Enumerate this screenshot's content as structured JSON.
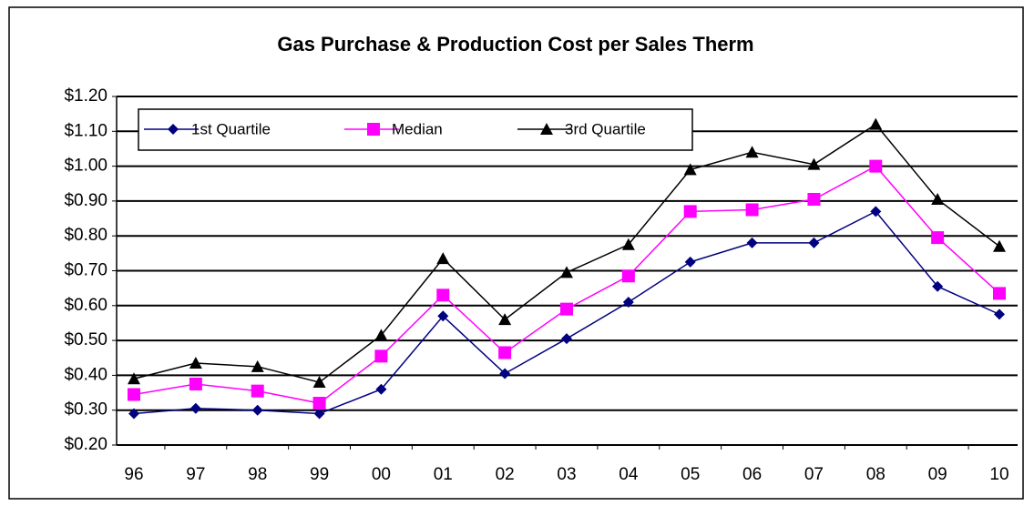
{
  "chart_data": {
    "type": "line",
    "title": "Gas Purchase & Production Cost per Sales Therm",
    "categories": [
      "96",
      "97",
      "98",
      "99",
      "00",
      "01",
      "02",
      "03",
      "04",
      "05",
      "06",
      "07",
      "08",
      "09",
      "10"
    ],
    "series": [
      {
        "name": "1st Quartile",
        "color": "#000080",
        "marker": "diamond",
        "values": [
          0.29,
          0.305,
          0.3,
          0.29,
          0.36,
          0.57,
          0.405,
          0.505,
          0.61,
          0.725,
          0.78,
          0.78,
          0.87,
          0.655,
          0.575
        ]
      },
      {
        "name": "Median",
        "color": "#ff00ff",
        "marker": "square",
        "values": [
          0.345,
          0.375,
          0.355,
          0.32,
          0.455,
          0.63,
          0.465,
          0.59,
          0.685,
          0.87,
          0.875,
          0.905,
          1.0,
          0.795,
          0.635
        ]
      },
      {
        "name": "3rd Quartile",
        "color": "#000000",
        "marker": "triangle",
        "values": [
          0.39,
          0.435,
          0.425,
          0.38,
          0.515,
          0.735,
          0.56,
          0.695,
          0.775,
          0.99,
          1.04,
          1.005,
          1.12,
          0.905,
          0.77
        ]
      }
    ],
    "ylim": [
      0.2,
      1.2
    ],
    "yticks": [
      {
        "value": 0.2,
        "label": "$0.20"
      },
      {
        "value": 0.3,
        "label": "$0.30"
      },
      {
        "value": 0.4,
        "label": "$0.40"
      },
      {
        "value": 0.5,
        "label": "$0.50"
      },
      {
        "value": 0.6,
        "label": "$0.60"
      },
      {
        "value": 0.7,
        "label": "$0.70"
      },
      {
        "value": 0.8,
        "label": "$0.80"
      },
      {
        "value": 0.9,
        "label": "$0.90"
      },
      {
        "value": 1.0,
        "label": "$1.00"
      },
      {
        "value": 1.1,
        "label": "$1.10"
      },
      {
        "value": 1.2,
        "label": "$1.20"
      }
    ],
    "grid": true,
    "legend": "top-left"
  }
}
